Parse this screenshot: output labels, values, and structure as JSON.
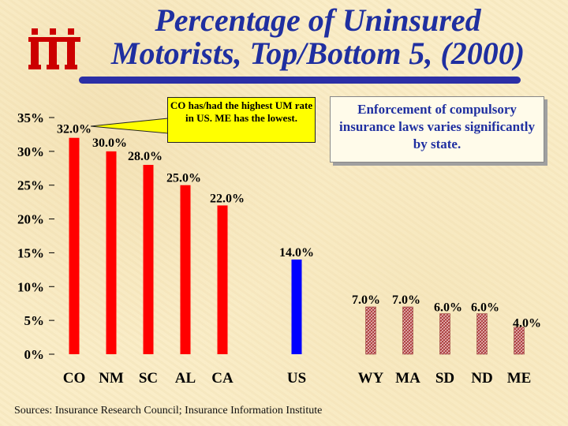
{
  "title": {
    "line1": "Percentage of Uninsured",
    "line2": "Motorists, Top/Bottom 5, (2000)"
  },
  "colors": {
    "title": "#1f2fa0",
    "rule": "#2b2fa6",
    "top5": "#ff0000",
    "us": "#0000ff",
    "bottom5": "#c65858",
    "logo": "#cc0000"
  },
  "logo": {
    "icon": "iii-logo-icon"
  },
  "callout": {
    "text": "CO has/had the highest UM rate in US.  ME has the lowest."
  },
  "enforcement_note": {
    "text": "Enforcement of compulsory insurance laws varies significantly by state."
  },
  "source": "Sources: Insurance Research Council; Insurance Information Institute",
  "chart_data": {
    "type": "bar",
    "title": "Percentage of Uninsured Motorists, Top/Bottom 5, (2000)",
    "categories": [
      "CO",
      "NM",
      "SC",
      "AL",
      "CA",
      "US",
      "WY",
      "MA",
      "SD",
      "ND",
      "ME"
    ],
    "values": [
      32.0,
      30.0,
      28.0,
      25.0,
      22.0,
      14.0,
      7.0,
      7.0,
      6.0,
      6.0,
      4.0
    ],
    "data_labels": [
      "32.0%",
      "30.0%",
      "28.0%",
      "25.0%",
      "22.0%",
      "14.0%",
      "7.0%",
      "7.0%",
      "6.0%",
      "6.0%",
      "4.0%"
    ],
    "groups": [
      "top5",
      "top5",
      "top5",
      "top5",
      "top5",
      "us",
      "bottom5",
      "bottom5",
      "bottom5",
      "bottom5",
      "bottom5"
    ],
    "yticks": [
      "0%",
      "5%",
      "10%",
      "15%",
      "20%",
      "25%",
      "30%",
      "35%"
    ],
    "ylim": [
      0,
      35
    ],
    "xlabel": "",
    "ylabel": "",
    "grid": false,
    "legend": "none"
  }
}
